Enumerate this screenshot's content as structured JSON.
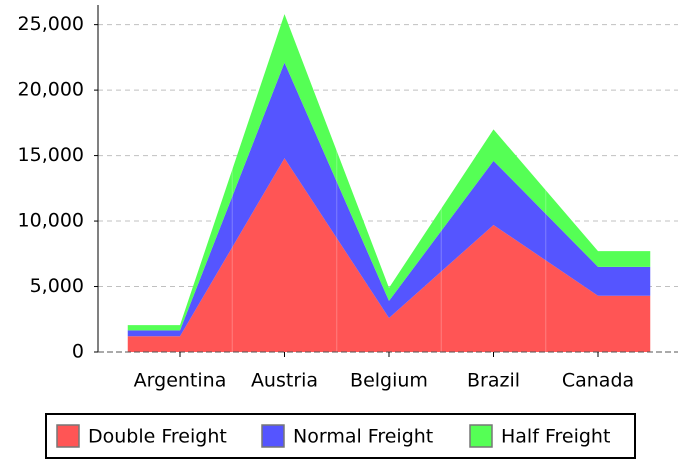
{
  "chart_data": {
    "type": "area",
    "stacked": true,
    "categories": [
      "Argentina",
      "Austria",
      "Belgium",
      "Brazil",
      "Canada"
    ],
    "series": [
      {
        "name": "Double Freight",
        "color": "#ff5555",
        "values": [
          1200,
          14800,
          2600,
          9700,
          4300
        ]
      },
      {
        "name": "Normal Freight",
        "color": "#5555ff",
        "values": [
          450,
          7300,
          1300,
          4900,
          2200
        ]
      },
      {
        "name": "Half Freight",
        "color": "#55ff55",
        "values": [
          400,
          3700,
          1000,
          2400,
          1200
        ]
      }
    ],
    "ylim": [
      0,
      26500
    ],
    "yticks": [
      0,
      {
        "value": 5000,
        "label": "5,000"
      },
      {
        "value": 10000,
        "label": "10,000"
      },
      {
        "value": 15000,
        "label": "15,000"
      },
      {
        "value": 20000,
        "label": "20,000"
      },
      {
        "value": 25000,
        "label": "25,000"
      }
    ],
    "grid": true,
    "legend": "bottom"
  }
}
